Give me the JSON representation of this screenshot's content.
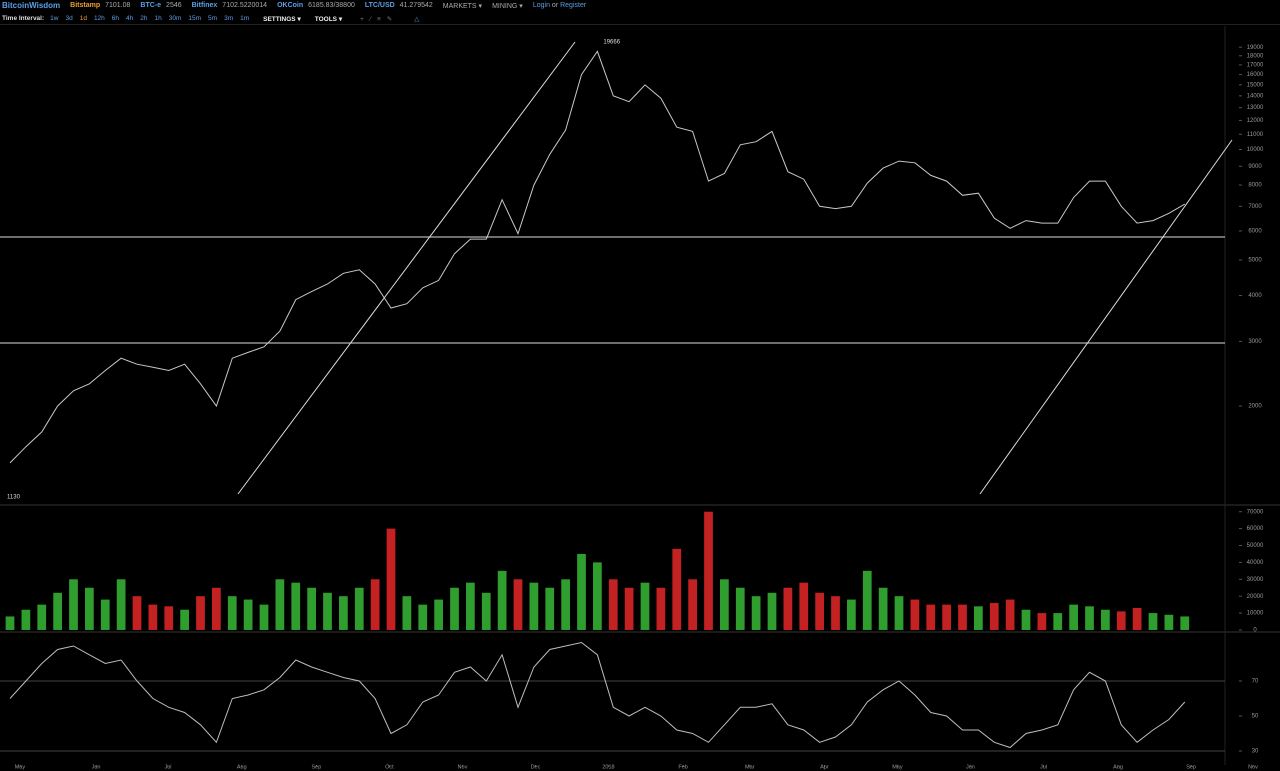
{
  "header": {
    "brand": "BitcoinWisdom",
    "tickers": [
      {
        "name": "Bitstamp",
        "price": "7101.08",
        "color": "#f0a030"
      },
      {
        "name": "BTC-e",
        "price": "2546",
        "color": "#5aa0e6"
      },
      {
        "name": "Bitfinex",
        "price": "7102.5220014",
        "color": "#5aa0e6"
      },
      {
        "name": "OKCoin",
        "price": "6185.83/38800",
        "color": "#5aa0e6"
      },
      {
        "name": "LTC/USD",
        "price": "41.279542",
        "color": "#5aa0e6"
      }
    ],
    "menus": [
      "MARKETS",
      "MINING"
    ],
    "login": "Login",
    "or": "or",
    "register": "Register"
  },
  "toolbar": {
    "label": "Time Interval:",
    "intervals": [
      "1w",
      "3d",
      "1d",
      "12h",
      "6h",
      "4h",
      "2h",
      "1h",
      "30m",
      "15m",
      "5m",
      "3m",
      "1m"
    ],
    "selected_interval": 2,
    "settings": "SETTINGS",
    "tools": "TOOLS"
  },
  "chart_data": [
    {
      "type": "line",
      "log_scale": true,
      "color": "#c8c8c8",
      "values": [
        1400,
        1550,
        1700,
        2000,
        2200,
        2300,
        2500,
        2700,
        2600,
        2550,
        2500,
        2600,
        2300,
        2000,
        2700,
        2800,
        2900,
        3200,
        3900,
        4100,
        4300,
        4600,
        4700,
        4300,
        3700,
        3800,
        4200,
        4400,
        5200,
        5700,
        5700,
        7300,
        5900,
        8000,
        9700,
        11300,
        16000,
        18500,
        14000,
        13500,
        15000,
        13800,
        11500,
        11200,
        8200,
        8600,
        10300,
        10500,
        11200,
        8700,
        8300,
        7000,
        6900,
        7000,
        8100,
        8900,
        9300,
        9200,
        8500,
        8200,
        7500,
        7600,
        6500,
        6100,
        6400,
        6300,
        6300,
        7400,
        8200,
        8200,
        7000,
        6300,
        6400,
        6700,
        7100
      ],
      "high": 19666,
      "low": 1130,
      "xlim": [
        -0.63,
        80
      ],
      "ylim": [
        1075,
        21700
      ],
      "yticks": [
        19000,
        18000,
        17000,
        16000,
        15000,
        14000,
        13000,
        12000,
        11000,
        10000,
        9000,
        8000,
        7000,
        6000,
        5000,
        4000,
        3000,
        2000
      ]
    },
    {
      "type": "bar",
      "up_color": "#2f9e2f",
      "down_color": "#c42222",
      "values": [
        8000,
        12000,
        15000,
        22000,
        30000,
        25000,
        18000,
        30000,
        20000,
        15000,
        14000,
        12000,
        20000,
        25000,
        20000,
        18000,
        15000,
        30000,
        28000,
        25000,
        22000,
        20000,
        25000,
        30000,
        60000,
        20000,
        15000,
        18000,
        25000,
        28000,
        22000,
        35000,
        30000,
        28000,
        25000,
        30000,
        45000,
        40000,
        30000,
        25000,
        28000,
        25000,
        48000,
        30000,
        70000,
        30000,
        25000,
        20000,
        22000,
        25000,
        28000,
        22000,
        20000,
        18000,
        35000,
        25000,
        20000,
        18000,
        15000,
        15000,
        15000,
        14000,
        16000,
        18000,
        12000,
        10000,
        10000,
        15000,
        14000,
        12000,
        11000,
        13000,
        10000,
        9000,
        8000
      ],
      "xlim": [
        -0.63,
        80
      ],
      "ylim": [
        -1200,
        72800
      ],
      "yticks": [
        70000,
        60000,
        50000,
        40000,
        30000,
        20000,
        10000,
        0
      ]
    },
    {
      "type": "line",
      "color": "#bdbdbd",
      "values": [
        60,
        70,
        80,
        88,
        90,
        85,
        80,
        82,
        70,
        60,
        55,
        52,
        45,
        35,
        60,
        62,
        65,
        72,
        82,
        78,
        75,
        72,
        70,
        60,
        40,
        45,
        58,
        62,
        75,
        78,
        70,
        85,
        55,
        78,
        88,
        90,
        92,
        85,
        55,
        50,
        55,
        50,
        42,
        40,
        35,
        45,
        55,
        55,
        57,
        45,
        42,
        35,
        38,
        45,
        58,
        65,
        70,
        62,
        52,
        50,
        42,
        42,
        35,
        32,
        40,
        42,
        45,
        65,
        75,
        70,
        45,
        35,
        42,
        48,
        58
      ],
      "levels": [
        70,
        30
      ],
      "xlim": [
        -0.63,
        80
      ],
      "ylim": [
        22,
        96.3
      ],
      "yticks": [
        70,
        50,
        30
      ],
      "xticks": [
        {
          "value": 0.63,
          "label": "May"
        },
        {
          "value": 5.42,
          "label": "Jun"
        },
        {
          "value": 9.95,
          "label": "Jul"
        },
        {
          "value": 14.6,
          "label": "Aug"
        },
        {
          "value": 19.3,
          "label": "Sep"
        },
        {
          "value": 23.9,
          "label": "Oct"
        },
        {
          "value": 28.5,
          "label": "Nov"
        },
        {
          "value": 33.1,
          "label": "Dec"
        },
        {
          "value": 37.7,
          "label": "2018"
        },
        {
          "value": 42.4,
          "label": "Feb"
        },
        {
          "value": 46.6,
          "label": "Mar"
        },
        {
          "value": 51.3,
          "label": "Apr"
        },
        {
          "value": 55.9,
          "label": "May"
        },
        {
          "value": 60.5,
          "label": "Jun"
        },
        {
          "value": 65.1,
          "label": "Jul"
        },
        {
          "value": 69.8,
          "label": "Aug"
        },
        {
          "value": 74.4,
          "label": "Sep"
        },
        {
          "value": 78.3,
          "label": "Nov"
        }
      ]
    }
  ]
}
